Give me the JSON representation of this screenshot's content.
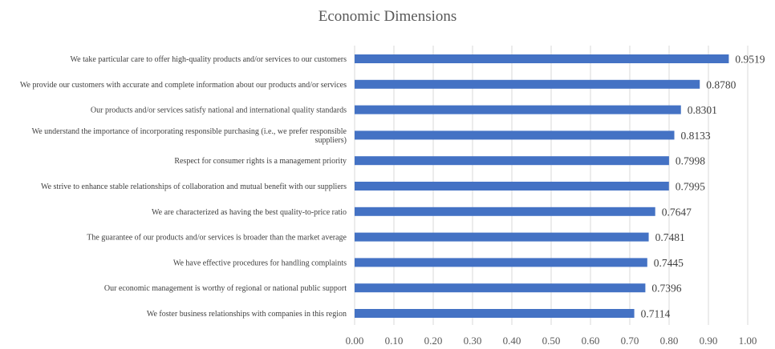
{
  "chart_data": {
    "type": "bar",
    "orientation": "horizontal",
    "title": "Economic Dimensions",
    "xlabel": "",
    "ylabel": "",
    "xlim": [
      0,
      1
    ],
    "x_ticks": [
      "0.00",
      "0.10",
      "0.20",
      "0.30",
      "0.40",
      "0.50",
      "0.60",
      "0.70",
      "0.80",
      "0.90",
      "1.00"
    ],
    "grid": true,
    "legend": "none",
    "bar_color": "#4472C4",
    "categories": [
      [
        "We take particular care to offer high-quality products and/or services to our customers"
      ],
      [
        "We provide our customers with accurate and complete information about our products and/or services"
      ],
      [
        "Our products and/or services satisfy national and international quality standards"
      ],
      [
        "We understand the importance of incorporating responsible purchasing (i.e., we prefer responsible",
        "suppliers)"
      ],
      [
        "Respect for consumer rights is a management priority"
      ],
      [
        "We strive to enhance stable relationships of collaboration and mutual benefit with our suppliers"
      ],
      [
        "We are characterized as having the best quality-to-price ratio"
      ],
      [
        "The guarantee of our products and/or services is broader than the market average"
      ],
      [
        "We have effective procedures for handling complaints"
      ],
      [
        "Our economic management is worthy of regional or national public support"
      ],
      [
        "We foster business relationships with companies in this region"
      ]
    ],
    "values": [
      0.9519,
      0.878,
      0.8301,
      0.8133,
      0.7998,
      0.7995,
      0.7647,
      0.7481,
      0.7445,
      0.7396,
      0.7114
    ],
    "value_labels": [
      "0.9519",
      "0.8780",
      "0.8301",
      "0.8133",
      "0.7998",
      "0.7995",
      "0.7647",
      "0.7481",
      "0.7445",
      "0.7396",
      "0.7114"
    ]
  }
}
